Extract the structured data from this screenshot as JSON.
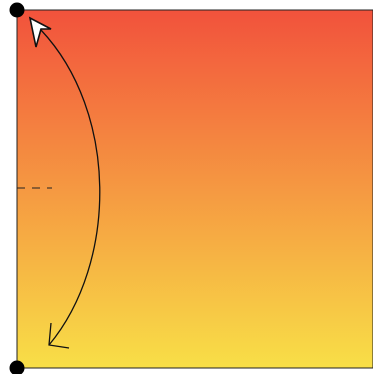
{
  "panel": {
    "gradient_top_color": "#f2523c",
    "gradient_bottom_color": "#f8df47",
    "border_color": "#222222"
  },
  "markers": {
    "corner_dot_color": "#000000",
    "fold_line_style": "dashed"
  },
  "arrow": {
    "direction": "bottom-to-top",
    "head_top": "filled-white-triangle",
    "head_bottom": "open-chevron"
  },
  "icons": [
    "corner-dot-icon",
    "arrowhead-icon",
    "chevron-icon"
  ]
}
